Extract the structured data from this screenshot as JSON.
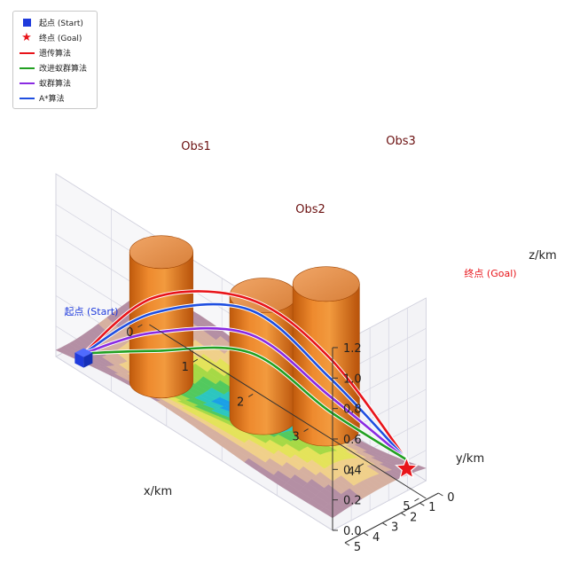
{
  "chart_data": {
    "type": "surface3d",
    "xlabel": "x/km",
    "ylabel": "y/km",
    "zlabel": "z/km",
    "xlim": [
      0,
      5
    ],
    "ylim": [
      0,
      5
    ],
    "zlim": [
      0,
      1.2
    ],
    "x_ticks": [
      "0",
      "1",
      "2",
      "3",
      "4",
      "5"
    ],
    "y_ticks": [
      "0",
      "1",
      "2",
      "3",
      "4",
      "5"
    ],
    "z_ticks": [
      "0.0",
      "0.2",
      "0.4",
      "0.6",
      "0.8",
      "1.0",
      "1.2"
    ],
    "grid": true,
    "legend_position": "top-left",
    "legend": [
      {
        "label": "起点 (Start)",
        "marker": "square",
        "color": "#1f3bdc"
      },
      {
        "label": "终点 (Goal)",
        "marker": "star",
        "color": "#e8141a"
      },
      {
        "label": "遗传算法",
        "marker": "line",
        "color": "#e8141a"
      },
      {
        "label": "改进蚁群算法",
        "marker": "line",
        "color": "#22a022"
      },
      {
        "label": "蚁群算法",
        "marker": "line",
        "color": "#8a2be2"
      },
      {
        "label": "A*算法",
        "marker": "line",
        "color": "#1f4fe0"
      }
    ],
    "start": {
      "label": "起点 (Start)",
      "x": 0.3,
      "y": 4.4,
      "z": 0.02
    },
    "goal": {
      "label": "终点 (Goal)",
      "x": 4.75,
      "y": 0.3,
      "z": 0.04
    },
    "obstacles": [
      {
        "label": "Obs1",
        "x": 1.5,
        "y": 3.8,
        "radius": 0.38,
        "height": 0.85
      },
      {
        "label": "Obs2",
        "x": 2.9,
        "y": 2.5,
        "radius": 0.4,
        "height": 0.8
      },
      {
        "label": "Obs3",
        "x": 3.6,
        "y": 1.2,
        "radius": 0.4,
        "height": 0.95
      }
    ],
    "series": [
      {
        "name": "遗传算法",
        "color": "#e8141a",
        "x": [
          0.3,
          1.2,
          2.5,
          3.6,
          4.75
        ],
        "y": [
          4.4,
          3.3,
          2.0,
          1.0,
          0.3
        ],
        "z": [
          0.05,
          0.55,
          0.75,
          0.55,
          0.1
        ]
      },
      {
        "name": "A*算法",
        "color": "#1f4fe0",
        "x": [
          0.3,
          1.2,
          2.5,
          3.6,
          4.75
        ],
        "y": [
          4.4,
          3.3,
          2.0,
          1.0,
          0.3
        ],
        "z": [
          0.05,
          0.45,
          0.68,
          0.42,
          0.1
        ]
      },
      {
        "name": "蚁群算法",
        "color": "#8a2be2",
        "x": [
          0.3,
          1.2,
          2.5,
          3.6,
          4.75
        ],
        "y": [
          4.4,
          3.3,
          2.0,
          1.0,
          0.3
        ],
        "z": [
          0.05,
          0.32,
          0.52,
          0.3,
          0.1
        ]
      },
      {
        "name": "改进蚁群算法",
        "color": "#22a022",
        "x": [
          0.3,
          1.2,
          2.5,
          3.6,
          4.75
        ],
        "y": [
          4.4,
          3.3,
          2.0,
          1.0,
          0.3
        ],
        "z": [
          0.05,
          0.2,
          0.4,
          0.2,
          0.1
        ]
      }
    ]
  }
}
